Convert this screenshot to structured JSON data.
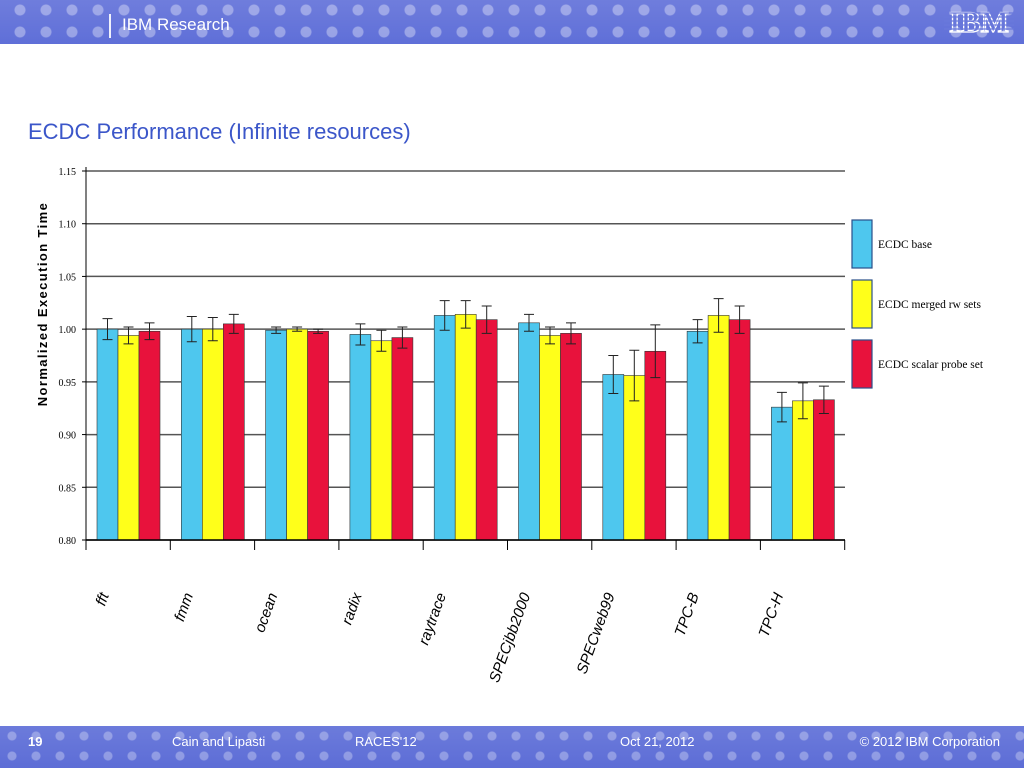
{
  "header": {
    "org": "IBM Research",
    "logo_text": "IBM"
  },
  "slide": {
    "title": "ECDC Performance (Infinite resources)"
  },
  "footer": {
    "page": "19",
    "authors": "Cain and Lipasti",
    "venue": "RACES'12",
    "date": "Oct 21, 2012",
    "copyright": "© 2012 IBM Corporation"
  },
  "colors": {
    "base": "#4ec7ee",
    "merged": "#ffff1a",
    "scalar": "#e8123c",
    "title": "#3b56c9",
    "bar_band": "#6f7ddc"
  },
  "chart_data": {
    "type": "bar",
    "ylabel": "Normalized Execution Time",
    "ylim": [
      0.8,
      1.15
    ],
    "yticks": [
      "0.80",
      "0.85",
      "0.90",
      "0.95",
      "1.00",
      "1.05",
      "1.10",
      "1.15"
    ],
    "grid": true,
    "legend": "right",
    "categories": [
      "fft",
      "fmm",
      "ocean",
      "radix",
      "raytrace",
      "SPECjbb2000",
      "SPECweb99",
      "TPC-B",
      "TPC-H"
    ],
    "series": [
      {
        "name": "ECDC base",
        "color": "#4ec7ee",
        "values": [
          1.0,
          1.0,
          0.999,
          0.995,
          1.013,
          1.006,
          0.957,
          0.998,
          0.926
        ],
        "errors": [
          0.01,
          0.012,
          0.003,
          0.01,
          0.014,
          0.008,
          0.018,
          0.011,
          0.014
        ]
      },
      {
        "name": "ECDC merged rw sets",
        "color": "#ffff1a",
        "values": [
          0.994,
          1.0,
          1.0,
          0.989,
          1.014,
          0.994,
          0.956,
          1.013,
          0.932
        ],
        "errors": [
          0.008,
          0.011,
          0.002,
          0.01,
          0.013,
          0.008,
          0.024,
          0.016,
          0.017
        ]
      },
      {
        "name": "ECDC scalar probe set",
        "color": "#e8123c",
        "values": [
          0.998,
          1.005,
          0.998,
          0.992,
          1.009,
          0.996,
          0.979,
          1.009,
          0.933
        ],
        "errors": [
          0.008,
          0.009,
          0.002,
          0.01,
          0.013,
          0.01,
          0.025,
          0.013,
          0.013
        ]
      }
    ]
  }
}
